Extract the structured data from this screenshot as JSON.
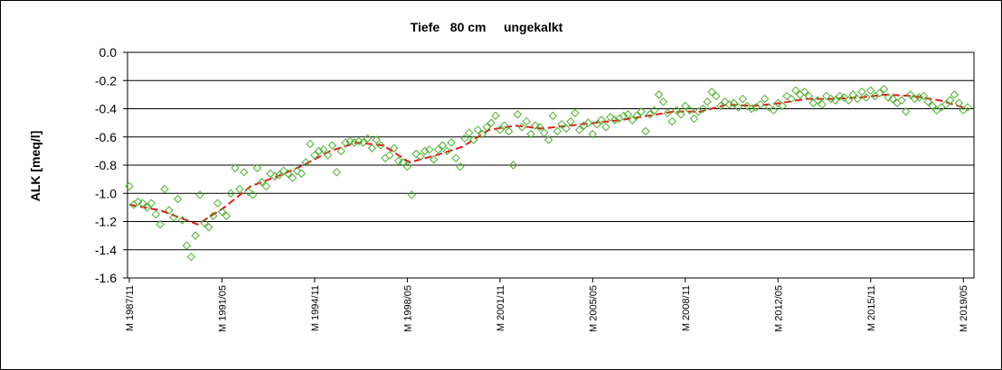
{
  "chart_data": {
    "type": "scatter",
    "title": "Tiefe   80 cm     ungekalkt",
    "xlabel": "",
    "ylabel": "ALK [meq/l]",
    "ylim": [
      -1.6,
      0.0
    ],
    "yticks": [
      "0.0",
      "-0.2",
      "-0.4",
      "-0.6",
      "-0.8",
      "-1.0",
      "-1.2",
      "-1.4",
      "-1.6"
    ],
    "xticks": [
      "M 1987/11",
      "M 1991/05",
      "M 1994/11",
      "M 1998/05",
      "M 2001/11",
      "M 2005/05",
      "M 2008/11",
      "M 2012/05",
      "M 2015/11",
      "M 2019/05"
    ],
    "xlim": [
      "1987-11",
      "2019-09"
    ],
    "grid": "horizontal",
    "marker_color": "#4caf2a",
    "trend_color": "#e31a1c",
    "series": [
      {
        "marker": "diamond",
        "points": [
          [
            "1987-11",
            -0.95
          ],
          [
            "1988-01",
            -1.08
          ],
          [
            "1988-03",
            -1.06
          ],
          [
            "1988-05",
            -1.07
          ],
          [
            "1988-07",
            -1.1
          ],
          [
            "1988-09",
            -1.07
          ],
          [
            "1988-11",
            -1.15
          ],
          [
            "1989-01",
            -1.22
          ],
          [
            "1989-03",
            -0.97
          ],
          [
            "1989-05",
            -1.12
          ],
          [
            "1989-07",
            -1.17
          ],
          [
            "1989-09",
            -1.04
          ],
          [
            "1989-11",
            -1.19
          ],
          [
            "1990-01",
            -1.37
          ],
          [
            "1990-03",
            -1.45
          ],
          [
            "1990-05",
            -1.3
          ],
          [
            "1990-07",
            -1.01
          ],
          [
            "1990-09",
            -1.21
          ],
          [
            "1990-11",
            -1.24
          ],
          [
            "1991-01",
            -1.16
          ],
          [
            "1991-03",
            -1.07
          ],
          [
            "1991-05",
            -1.13
          ],
          [
            "1991-07",
            -1.16
          ],
          [
            "1991-09",
            -1.0
          ],
          [
            "1991-11",
            -0.82
          ],
          [
            "1992-01",
            -0.97
          ],
          [
            "1992-03",
            -0.85
          ],
          [
            "1992-05",
            -0.99
          ],
          [
            "1992-07",
            -1.01
          ],
          [
            "1992-09",
            -0.82
          ],
          [
            "1992-11",
            -0.92
          ],
          [
            "1993-01",
            -0.95
          ],
          [
            "1993-03",
            -0.86
          ],
          [
            "1993-05",
            -0.88
          ],
          [
            "1993-07",
            -0.87
          ],
          [
            "1993-09",
            -0.84
          ],
          [
            "1993-11",
            -0.86
          ],
          [
            "1994-01",
            -0.89
          ],
          [
            "1994-03",
            -0.84
          ],
          [
            "1994-05",
            -0.86
          ],
          [
            "1994-07",
            -0.78
          ],
          [
            "1994-09",
            -0.65
          ],
          [
            "1994-11",
            -0.73
          ],
          [
            "1995-01",
            -0.7
          ],
          [
            "1995-03",
            -0.69
          ],
          [
            "1995-05",
            -0.73
          ],
          [
            "1995-07",
            -0.66
          ],
          [
            "1995-09",
            -0.85
          ],
          [
            "1995-11",
            -0.7
          ],
          [
            "1996-01",
            -0.64
          ],
          [
            "1996-03",
            -0.63
          ],
          [
            "1996-05",
            -0.64
          ],
          [
            "1996-07",
            -0.63
          ],
          [
            "1996-09",
            -0.64
          ],
          [
            "1996-11",
            -0.61
          ],
          [
            "1997-01",
            -0.68
          ],
          [
            "1997-03",
            -0.62
          ],
          [
            "1997-05",
            -0.66
          ],
          [
            "1997-07",
            -0.75
          ],
          [
            "1997-09",
            -0.73
          ],
          [
            "1997-11",
            -0.68
          ],
          [
            "1998-01",
            -0.77
          ],
          [
            "1998-03",
            -0.78
          ],
          [
            "1998-05",
            -0.81
          ],
          [
            "1998-07",
            -1.01
          ],
          [
            "1998-09",
            -0.72
          ],
          [
            "1998-11",
            -0.74
          ],
          [
            "1999-01",
            -0.7
          ],
          [
            "1999-03",
            -0.69
          ],
          [
            "1999-05",
            -0.76
          ],
          [
            "1999-07",
            -0.69
          ],
          [
            "1999-09",
            -0.66
          ],
          [
            "1999-11",
            -0.7
          ],
          [
            "2000-01",
            -0.64
          ],
          [
            "2000-03",
            -0.75
          ],
          [
            "2000-05",
            -0.81
          ],
          [
            "2000-07",
            -0.61
          ],
          [
            "2000-09",
            -0.57
          ],
          [
            "2000-11",
            -0.62
          ],
          [
            "2001-01",
            -0.55
          ],
          [
            "2001-03",
            -0.58
          ],
          [
            "2001-05",
            -0.53
          ],
          [
            "2001-07",
            -0.5
          ],
          [
            "2001-09",
            -0.45
          ],
          [
            "2001-11",
            -0.55
          ],
          [
            "2002-01",
            -0.52
          ],
          [
            "2002-03",
            -0.56
          ],
          [
            "2002-05",
            -0.8
          ],
          [
            "2002-07",
            -0.44
          ],
          [
            "2002-09",
            -0.53
          ],
          [
            "2002-11",
            -0.49
          ],
          [
            "2003-01",
            -0.58
          ],
          [
            "2003-03",
            -0.52
          ],
          [
            "2003-05",
            -0.53
          ],
          [
            "2003-07",
            -0.57
          ],
          [
            "2003-09",
            -0.62
          ],
          [
            "2003-11",
            -0.45
          ],
          [
            "2004-01",
            -0.56
          ],
          [
            "2004-03",
            -0.51
          ],
          [
            "2004-05",
            -0.54
          ],
          [
            "2004-07",
            -0.49
          ],
          [
            "2004-09",
            -0.43
          ],
          [
            "2004-11",
            -0.55
          ],
          [
            "2005-01",
            -0.52
          ],
          [
            "2005-03",
            -0.5
          ],
          [
            "2005-05",
            -0.58
          ],
          [
            "2005-07",
            -0.51
          ],
          [
            "2005-09",
            -0.48
          ],
          [
            "2005-11",
            -0.53
          ],
          [
            "2006-01",
            -0.46
          ],
          [
            "2006-03",
            -0.48
          ],
          [
            "2006-05",
            -0.47
          ],
          [
            "2006-07",
            -0.45
          ],
          [
            "2006-09",
            -0.44
          ],
          [
            "2006-11",
            -0.48
          ],
          [
            "2007-01",
            -0.45
          ],
          [
            "2007-03",
            -0.42
          ],
          [
            "2007-05",
            -0.56
          ],
          [
            "2007-07",
            -0.44
          ],
          [
            "2007-09",
            -0.41
          ],
          [
            "2007-11",
            -0.3
          ],
          [
            "2008-01",
            -0.35
          ],
          [
            "2008-03",
            -0.43
          ],
          [
            "2008-05",
            -0.49
          ],
          [
            "2008-07",
            -0.41
          ],
          [
            "2008-09",
            -0.44
          ],
          [
            "2008-11",
            -0.38
          ],
          [
            "2009-01",
            -0.41
          ],
          [
            "2009-03",
            -0.47
          ],
          [
            "2009-05",
            -0.42
          ],
          [
            "2009-07",
            -0.4
          ],
          [
            "2009-09",
            -0.35
          ],
          [
            "2009-11",
            -0.28
          ],
          [
            "2010-01",
            -0.31
          ],
          [
            "2010-03",
            -0.38
          ],
          [
            "2010-05",
            -0.35
          ],
          [
            "2010-07",
            -0.37
          ],
          [
            "2010-09",
            -0.36
          ],
          [
            "2010-11",
            -0.39
          ],
          [
            "2011-01",
            -0.33
          ],
          [
            "2011-03",
            -0.38
          ],
          [
            "2011-05",
            -0.4
          ],
          [
            "2011-07",
            -0.39
          ],
          [
            "2011-09",
            -0.37
          ],
          [
            "2011-11",
            -0.33
          ],
          [
            "2012-01",
            -0.39
          ],
          [
            "2012-03",
            -0.41
          ],
          [
            "2012-05",
            -0.36
          ],
          [
            "2012-07",
            -0.38
          ],
          [
            "2012-09",
            -0.31
          ],
          [
            "2012-11",
            -0.33
          ],
          [
            "2013-01",
            -0.27
          ],
          [
            "2013-03",
            -0.3
          ],
          [
            "2013-05",
            -0.28
          ],
          [
            "2013-07",
            -0.31
          ],
          [
            "2013-09",
            -0.36
          ],
          [
            "2013-11",
            -0.34
          ],
          [
            "2014-01",
            -0.37
          ],
          [
            "2014-03",
            -0.31
          ],
          [
            "2014-05",
            -0.33
          ],
          [
            "2014-07",
            -0.34
          ],
          [
            "2014-09",
            -0.31
          ],
          [
            "2014-11",
            -0.32
          ],
          [
            "2015-01",
            -0.34
          ],
          [
            "2015-03",
            -0.3
          ],
          [
            "2015-05",
            -0.33
          ],
          [
            "2015-07",
            -0.28
          ],
          [
            "2015-09",
            -0.32
          ],
          [
            "2015-11",
            -0.27
          ],
          [
            "2016-01",
            -0.31
          ],
          [
            "2016-03",
            -0.29
          ],
          [
            "2016-05",
            -0.26
          ],
          [
            "2016-07",
            -0.32
          ],
          [
            "2016-09",
            -0.33
          ],
          [
            "2016-11",
            -0.36
          ],
          [
            "2017-01",
            -0.34
          ],
          [
            "2017-03",
            -0.42
          ],
          [
            "2017-05",
            -0.3
          ],
          [
            "2017-07",
            -0.33
          ],
          [
            "2017-09",
            -0.32
          ],
          [
            "2017-11",
            -0.31
          ],
          [
            "2018-01",
            -0.35
          ],
          [
            "2018-03",
            -0.38
          ],
          [
            "2018-05",
            -0.41
          ],
          [
            "2018-07",
            -0.39
          ],
          [
            "2018-09",
            -0.37
          ],
          [
            "2018-11",
            -0.34
          ],
          [
            "2019-01",
            -0.3
          ],
          [
            "2019-03",
            -0.36
          ],
          [
            "2019-05",
            -0.41
          ],
          [
            "2019-07",
            -0.39
          ]
        ]
      },
      {
        "line": "dashed",
        "points": [
          [
            "1987-11",
            -1.08
          ],
          [
            "1989-01",
            -1.12
          ],
          [
            "1990-06",
            -1.22
          ],
          [
            "1991-06",
            -1.1
          ],
          [
            "1992-06",
            -0.95
          ],
          [
            "1993-06",
            -0.88
          ],
          [
            "1994-06",
            -0.8
          ],
          [
            "1995-06",
            -0.7
          ],
          [
            "1996-06",
            -0.64
          ],
          [
            "1997-06",
            -0.66
          ],
          [
            "1998-06",
            -0.78
          ],
          [
            "1999-06",
            -0.73
          ],
          [
            "2000-06",
            -0.67
          ],
          [
            "2001-06",
            -0.55
          ],
          [
            "2002-06",
            -0.52
          ],
          [
            "2003-06",
            -0.54
          ],
          [
            "2004-06",
            -0.52
          ],
          [
            "2005-06",
            -0.5
          ],
          [
            "2006-06",
            -0.48
          ],
          [
            "2007-06",
            -0.45
          ],
          [
            "2008-06",
            -0.42
          ],
          [
            "2009-06",
            -0.42
          ],
          [
            "2010-06",
            -0.37
          ],
          [
            "2011-06",
            -0.38
          ],
          [
            "2012-06",
            -0.36
          ],
          [
            "2013-06",
            -0.33
          ],
          [
            "2014-06",
            -0.33
          ],
          [
            "2015-06",
            -0.32
          ],
          [
            "2016-06",
            -0.3
          ],
          [
            "2017-06",
            -0.31
          ],
          [
            "2018-06",
            -0.34
          ],
          [
            "2019-07",
            -0.4
          ]
        ]
      }
    ]
  }
}
